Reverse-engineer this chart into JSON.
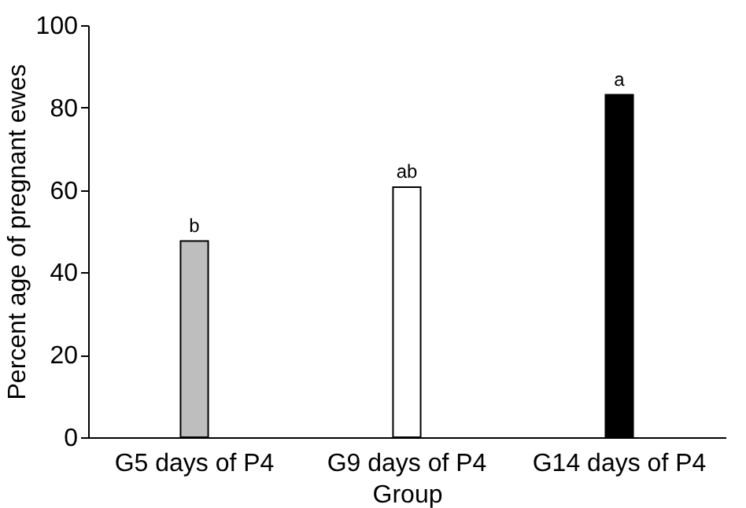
{
  "chart_data": {
    "type": "bar",
    "xlabel": "Group",
    "ylabel": "Percent age of pregnant ewes",
    "categories": [
      "G5 days of P4",
      "G9 days of P4",
      "G14 days of P4"
    ],
    "values": [
      47.6,
      60.7,
      83.1
    ],
    "colors": [
      "#bebebe",
      "#ffffff",
      "#000000"
    ],
    "ylim": [
      0,
      100
    ],
    "yticks": [
      0,
      20,
      40,
      60,
      80,
      100
    ],
    "grid": false,
    "annotations": [
      {
        "text": "b",
        "x": "G5 days of P4",
        "y": 47.6
      },
      {
        "text": "ab",
        "x": "G9 days of P4",
        "y": 60.7
      },
      {
        "text": "a",
        "x": "G14 days of P4",
        "y": 83.1
      }
    ]
  }
}
